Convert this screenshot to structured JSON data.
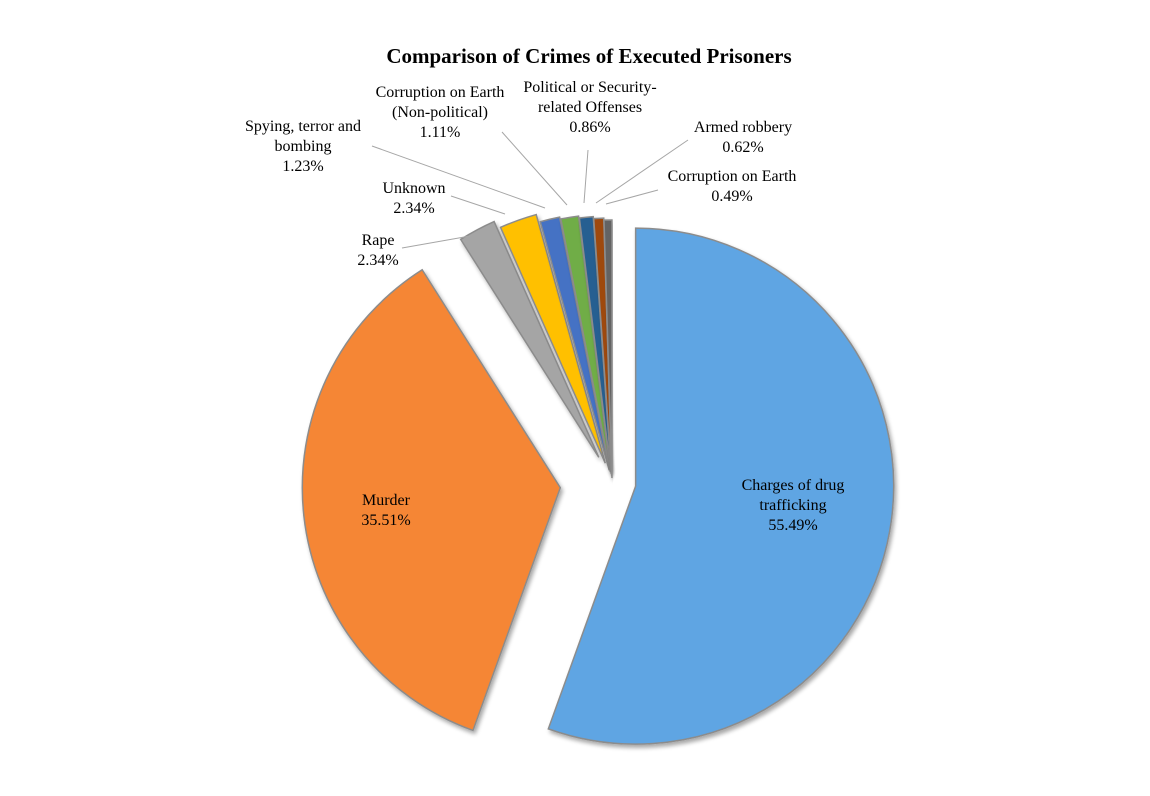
{
  "chart_data": {
    "type": "pie",
    "title": "Comparison of Crimes of Executed Prisoners",
    "exploded": true,
    "legend": "none",
    "slices": [
      {
        "name": "Charges of drug trafficking",
        "label_lines": [
          "Charges of drug",
          "trafficking"
        ],
        "value": 55.49,
        "label": "55.49%",
        "color": "#5ea5e3"
      },
      {
        "name": "Murder",
        "label_lines": [
          "Murder"
        ],
        "value": 35.51,
        "label": "35.51%",
        "color": "#f58634"
      },
      {
        "name": "Rape",
        "label_lines": [
          "Rape"
        ],
        "value": 2.34,
        "label": "2.34%",
        "color": "#a5a5a5"
      },
      {
        "name": "Unknown",
        "label_lines": [
          "Unknown"
        ],
        "value": 2.34,
        "label": "2.34%",
        "color": "#ffc000"
      },
      {
        "name": "Spying, terror and bombing",
        "label_lines": [
          "Spying, terror and",
          "bombing"
        ],
        "value": 1.23,
        "label": "1.23%",
        "color": "#4472c4"
      },
      {
        "name": "Corruption on Earth (Non-political)",
        "label_lines": [
          "Corruption on Earth",
          "(Non-political)"
        ],
        "value": 1.11,
        "label": "1.11%",
        "color": "#70ad47"
      },
      {
        "name": "Political or Security-related Offenses",
        "label_lines": [
          "Political or Security-",
          "related Offenses"
        ],
        "value": 0.86,
        "label": "0.86%",
        "color": "#255e91"
      },
      {
        "name": "Armed robbery",
        "label_lines": [
          "Armed robbery"
        ],
        "value": 0.62,
        "label": "0.62%",
        "color": "#9e480e"
      },
      {
        "name": "Corruption on Earth",
        "label_lines": [
          "Corruption on Earth"
        ],
        "value": 0.49,
        "label": "0.49%",
        "color": "#636363"
      }
    ]
  }
}
